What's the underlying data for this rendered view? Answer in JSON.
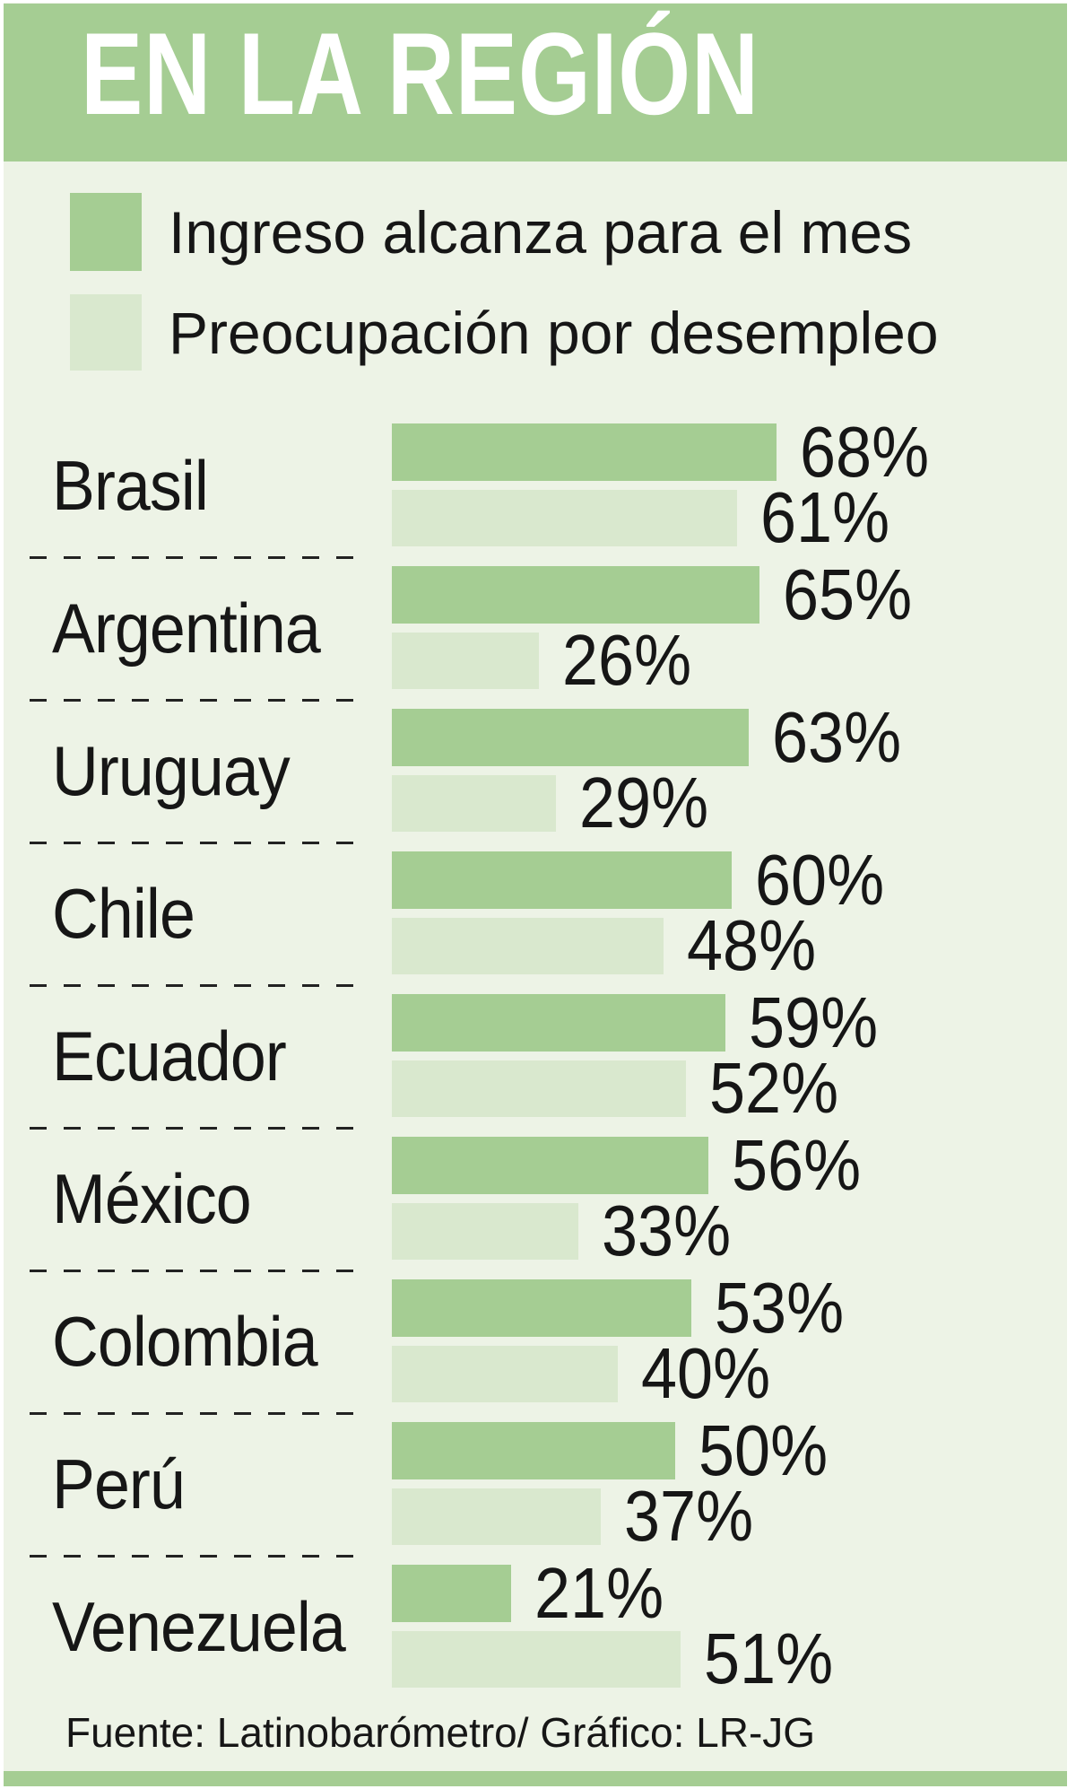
{
  "header": {
    "title": "EN LA REGIÓN"
  },
  "legend": {
    "items": [
      {
        "label": "Ingreso alcanza para el mes",
        "color": "#a5cd93"
      },
      {
        "label": "Preocupación por desempleo",
        "color": "#d9e8ce"
      }
    ]
  },
  "footer": {
    "source": "Fuente: Latinobarómetro/ Gráfico: LR-JG"
  },
  "colors": {
    "header_green": "#a5cd93",
    "dark_bar": "#a5cd93",
    "light_bar": "#d9e8ce",
    "background": "#edf3e6",
    "text": "#161616",
    "title_text": "#ffffff"
  },
  "chart_data": {
    "type": "bar",
    "orientation": "horizontal",
    "title": "EN LA REGIÓN",
    "xlabel": "",
    "ylabel": "",
    "xlim": [
      0,
      68
    ],
    "grid": false,
    "legend_position": "top-left",
    "categories": [
      "Brasil",
      "Argentina",
      "Uruguay",
      "Chile",
      "Ecuador",
      "México",
      "Colombia",
      "Perú",
      "Venezuela"
    ],
    "series": [
      {
        "name": "Ingreso alcanza para el mes",
        "values": [
          68,
          65,
          63,
          60,
          59,
          56,
          53,
          50,
          21
        ]
      },
      {
        "name": "Preocupación por desempleo",
        "values": [
          61,
          26,
          29,
          48,
          52,
          33,
          40,
          37,
          51
        ]
      }
    ],
    "rows": [
      {
        "country": "Brasil",
        "ingreso": 68,
        "desempleo": 61,
        "ingreso_label": "68%",
        "desempleo_label": "61%"
      },
      {
        "country": "Argentina",
        "ingreso": 65,
        "desempleo": 26,
        "ingreso_label": "65%",
        "desempleo_label": "26%"
      },
      {
        "country": "Uruguay",
        "ingreso": 63,
        "desempleo": 29,
        "ingreso_label": "63%",
        "desempleo_label": "29%"
      },
      {
        "country": "Chile",
        "ingreso": 60,
        "desempleo": 48,
        "ingreso_label": "60%",
        "desempleo_label": "48%"
      },
      {
        "country": "Ecuador",
        "ingreso": 59,
        "desempleo": 52,
        "ingreso_label": "59%",
        "desempleo_label": "52%"
      },
      {
        "country": "México",
        "ingreso": 56,
        "desempleo": 33,
        "ingreso_label": "56%",
        "desempleo_label": "33%"
      },
      {
        "country": "Colombia",
        "ingreso": 53,
        "desempleo": 40,
        "ingreso_label": "53%",
        "desempleo_label": "40%"
      },
      {
        "country": "Perú",
        "ingreso": 50,
        "desempleo": 37,
        "ingreso_label": "50%",
        "desempleo_label": "37%"
      },
      {
        "country": "Venezuela",
        "ingreso": 21,
        "desempleo": 51,
        "ingreso_label": "21%",
        "desempleo_label": "51%"
      }
    ]
  }
}
